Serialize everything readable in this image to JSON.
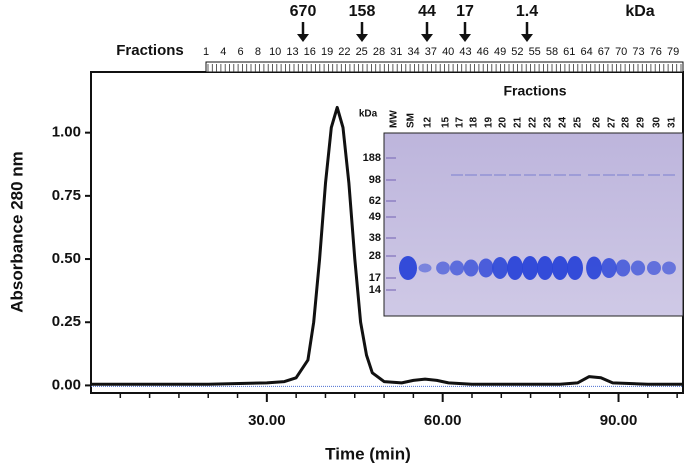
{
  "chart_data": {
    "type": "line",
    "x_label": "Time (min)",
    "y_label": "Absorbance 280 nm",
    "xlim": [
      0,
      101
    ],
    "ylim": [
      -0.03,
      1.24
    ],
    "xticks": [
      {
        "value": 30,
        "label": "30.00"
      },
      {
        "value": 60,
        "label": "60.00"
      },
      {
        "value": 90,
        "label": "90.00"
      }
    ],
    "x_minor_ticks": [
      5,
      10,
      15,
      20,
      25,
      35,
      40,
      45,
      50,
      55,
      65,
      70,
      75,
      80,
      85,
      95,
      100
    ],
    "yticks": [
      {
        "value": 0,
        "label": "0.00"
      },
      {
        "value": 0.25,
        "label": "0.25"
      },
      {
        "value": 0.5,
        "label": "0.50"
      },
      {
        "value": 0.75,
        "label": "0.75"
      },
      {
        "value": 1,
        "label": "1.00"
      }
    ],
    "color": "#111111",
    "x": [
      0,
      10,
      20,
      30,
      33,
      35,
      37,
      38,
      39,
      40,
      41,
      42,
      43,
      44,
      45,
      46,
      47,
      48,
      50,
      53,
      55,
      57,
      59,
      61,
      65,
      75,
      80,
      83,
      85,
      87,
      89,
      95,
      101
    ],
    "values": [
      0.005,
      0.005,
      0.005,
      0.01,
      0.015,
      0.03,
      0.1,
      0.25,
      0.5,
      0.8,
      1.02,
      1.1,
      1.02,
      0.8,
      0.5,
      0.25,
      0.12,
      0.05,
      0.015,
      0.01,
      0.02,
      0.025,
      0.02,
      0.01,
      0.005,
      0.005,
      0.005,
      0.01,
      0.035,
      0.03,
      0.01,
      0.005,
      0.005
    ]
  },
  "fractions": {
    "title": "Fractions",
    "labels": [
      1,
      4,
      6,
      8,
      10,
      13,
      16,
      19,
      22,
      25,
      28,
      31,
      34,
      37,
      40,
      43,
      46,
      49,
      52,
      55,
      58,
      61,
      64,
      67,
      70,
      73,
      76,
      79
    ]
  },
  "markers": {
    "unit": "kDa",
    "labels": [
      "670",
      "158",
      "44",
      "17",
      "1.4"
    ]
  },
  "gel": {
    "title": "Fractions",
    "unit": "kDa",
    "lanes": [
      "MW",
      "SM",
      "12",
      "15",
      "17",
      "18",
      "19",
      "20",
      "21",
      "22",
      "23",
      "24",
      "25",
      "26",
      "27",
      "28",
      "29",
      "30",
      "31"
    ],
    "ladder": [
      188,
      98,
      62,
      49,
      38,
      28,
      17,
      14
    ]
  }
}
